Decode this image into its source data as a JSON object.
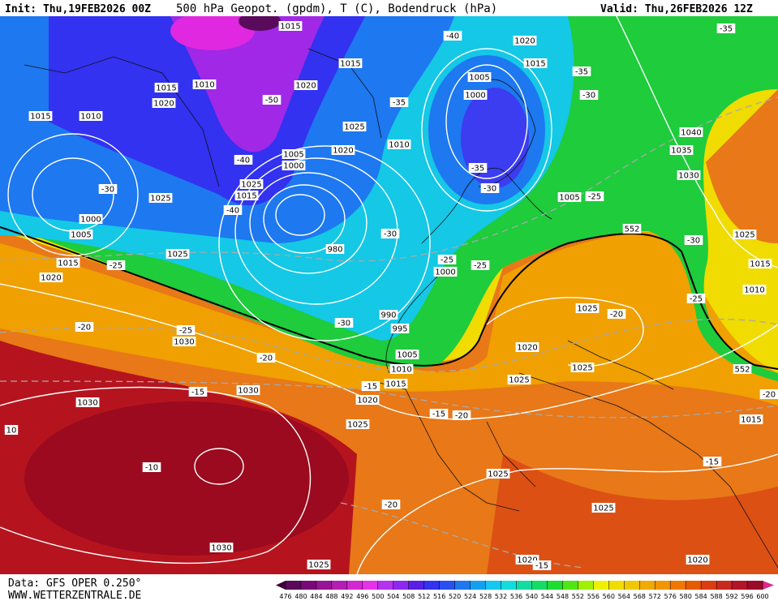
{
  "header": {
    "init": "Init: Thu,19FEB2026 00Z",
    "title": "500 hPa Geopot. (gpdm), T (C), Bodendruck (hPa)",
    "valid": "Valid: Thu,26FEB2026 12Z"
  },
  "footer": {
    "source": "Data: GFS OPER 0.250°",
    "website": "WWW.WETTERZENTRALE.DE"
  },
  "contour_labels": [
    "1015",
    "1015",
    "1020",
    "1015",
    "1015",
    "1010",
    "1020",
    "1015",
    "1010",
    "-50",
    "1020",
    "-40",
    "-35",
    "-35",
    "1005",
    "1000",
    "-35",
    "-30",
    "1025",
    "1020",
    "1010",
    "1040",
    "1035",
    "1030",
    "1005",
    "1000",
    "-40",
    "-30",
    "1025",
    "1015",
    "1025",
    "-40",
    "-30",
    "-35",
    "1005",
    "-25",
    "1000",
    "1005",
    "552",
    "-30",
    "-30",
    "1025",
    "1025",
    "980",
    "1015",
    "-25",
    "1020",
    "-25",
    "-25",
    "1000",
    "1015",
    "1010",
    "-25",
    "1025",
    "-20",
    "990",
    "-30",
    "995",
    "-20",
    "-25",
    "1030",
    "1020",
    "1005",
    "-20",
    "1010",
    "1025",
    "552",
    "1015",
    "-15",
    "1025",
    "-15",
    "1030",
    "1020",
    "1030",
    "-20",
    "-15",
    "-20",
    "1025",
    "1015",
    "10",
    "-10",
    "1025",
    "-15",
    "-20",
    "1025",
    "1030",
    "1025",
    "1020",
    "-15",
    "1020"
  ],
  "colorbar": {
    "ticks": [
      476,
      480,
      484,
      488,
      492,
      496,
      500,
      504,
      508,
      512,
      516,
      520,
      524,
      528,
      532,
      536,
      540,
      544,
      548,
      552,
      556,
      560,
      564,
      568,
      572,
      576,
      580,
      584,
      588,
      592,
      596,
      600
    ],
    "colors": [
      "#5a0a5a",
      "#780a78",
      "#961496",
      "#b41eb4",
      "#d228d2",
      "#e632e6",
      "#b432f0",
      "#8c28f0",
      "#5a1ee6",
      "#3232f0",
      "#2850f0",
      "#1e78f0",
      "#14a0f0",
      "#14c8f0",
      "#14dcdc",
      "#14dca0",
      "#14dc64",
      "#1edc32",
      "#50e614",
      "#a0f000",
      "#f0f000",
      "#f0dc00",
      "#f0c800",
      "#f0aa00",
      "#f09600",
      "#f07800",
      "#e65a00",
      "#dc3c14",
      "#c8281e",
      "#b41428",
      "#9b0a28"
    ]
  }
}
